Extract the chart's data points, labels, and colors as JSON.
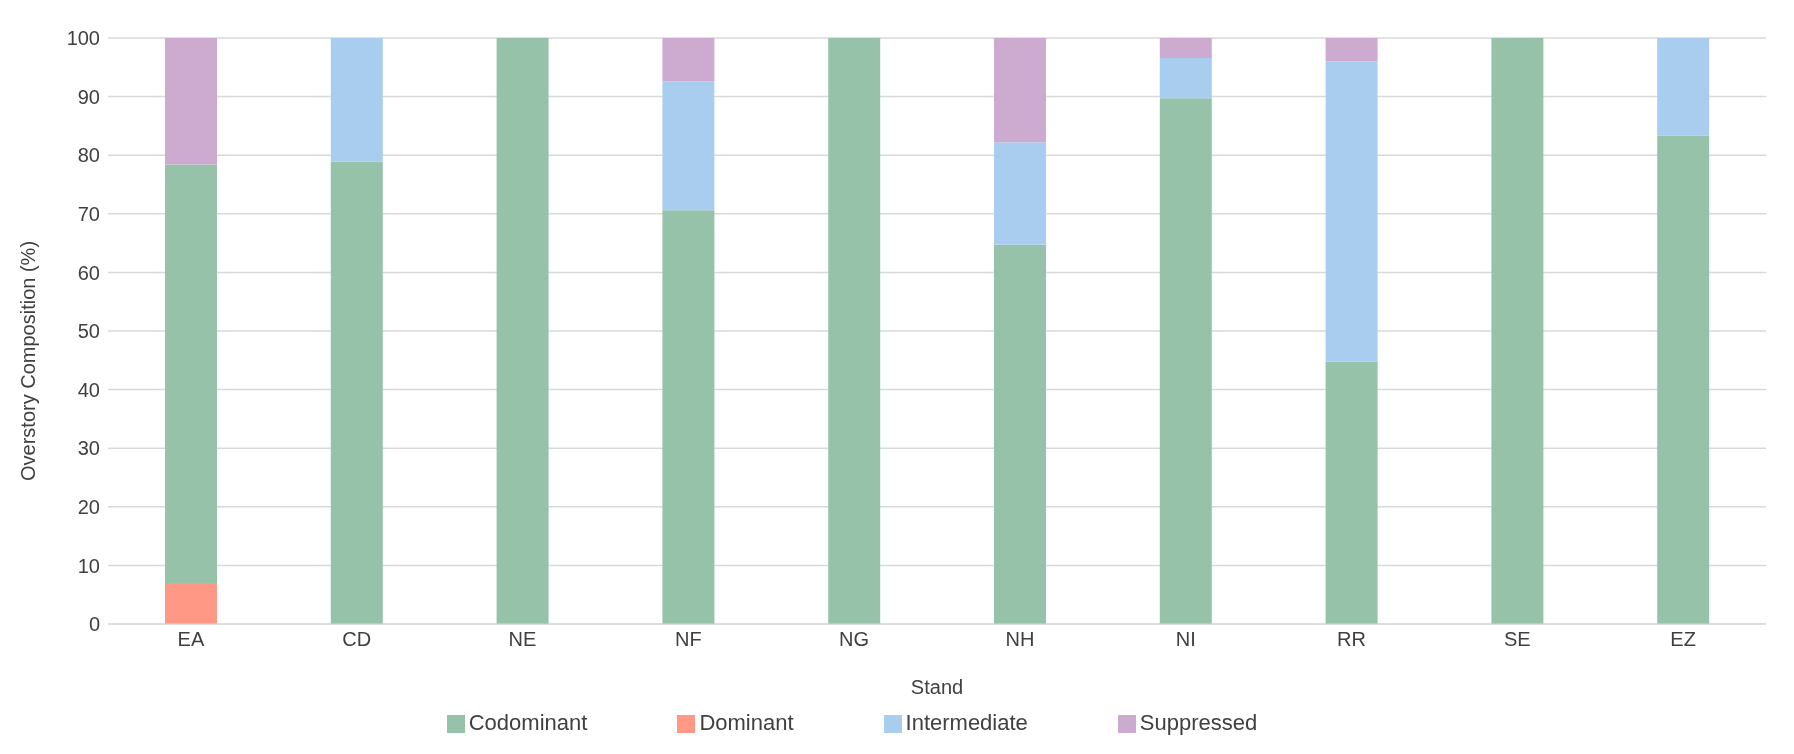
{
  "chart_data": {
    "type": "bar",
    "stacked": true,
    "xlabel": "Stand",
    "ylabel": "Overstory Composition (%)",
    "categories": [
      "EA",
      "CD",
      "NE",
      "NF",
      "NG",
      "NH",
      "NI",
      "RR",
      "SE",
      "EZ"
    ],
    "series": [
      {
        "name": "Dominant",
        "color": "#ff9986",
        "values": [
          7,
          0,
          0,
          0,
          0,
          0,
          0,
          0,
          0,
          0
        ]
      },
      {
        "name": "Codominant",
        "color": "#96c2a9",
        "values": [
          71.4,
          78.9,
          100,
          70.6,
          100,
          64.7,
          89.7,
          44.8,
          100,
          83.3
        ]
      },
      {
        "name": "Intermediate",
        "color": "#a8cdee",
        "values": [
          0,
          21.1,
          0,
          22,
          0,
          17.5,
          6.9,
          51.2,
          0,
          16.7
        ]
      },
      {
        "name": "Suppressed",
        "color": "#cdaad0",
        "values": [
          21.6,
          0,
          0,
          7.4,
          0,
          17.8,
          3.4,
          4,
          0,
          0
        ]
      }
    ],
    "ylim": [
      0,
      100
    ],
    "yticks": [
      0,
      10,
      20,
      30,
      40,
      50,
      60,
      70,
      80,
      90,
      100
    ],
    "grid": "y",
    "legend": "bottom"
  }
}
